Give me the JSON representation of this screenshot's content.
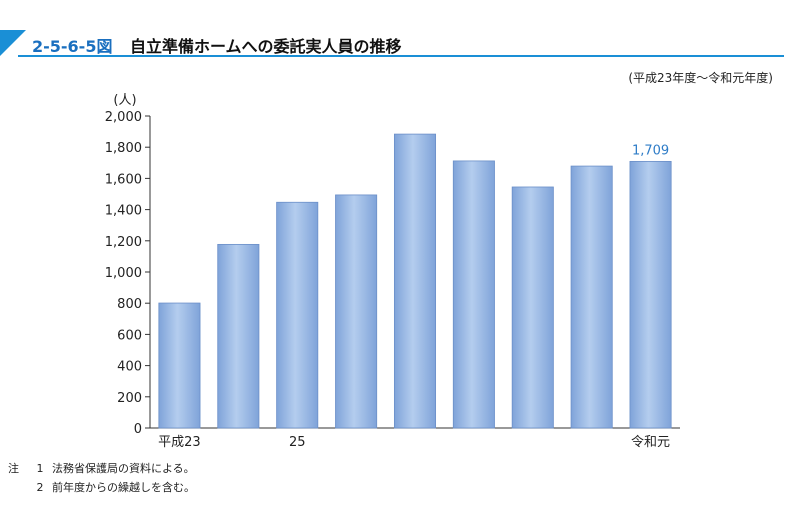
{
  "header": {
    "figure_number": "2-5-6-5図",
    "title": "自立準備ホームへの委託実人員の推移",
    "period": "(平成23年度～令和元年度)"
  },
  "chart_data": {
    "type": "bar",
    "categories": [
      "平成23",
      "",
      "25",
      "",
      "",
      "",
      "",
      "",
      "令和元"
    ],
    "values": [
      801,
      1177,
      1447,
      1494,
      1884,
      1712,
      1545,
      1679,
      1709
    ],
    "ylim": [
      0,
      2000
    ],
    "yticks": [
      "0",
      "200",
      "400",
      "600",
      "800",
      "1,000",
      "1,200",
      "1,400",
      "1,600",
      "1,800",
      "2,000"
    ],
    "ylabel": "(人)",
    "data_labels": [
      {
        "index": 8,
        "text": "1,709"
      }
    ],
    "bar_color": "#8fb1e0",
    "bar_edge": "#6b8fc8",
    "label_color": "#2e7cc7",
    "grid": false
  },
  "notes": {
    "mark": "注",
    "items": [
      {
        "num": "1",
        "text": "法務省保護局の資料による。"
      },
      {
        "num": "2",
        "text": "前年度からの繰越しを含む。"
      }
    ]
  }
}
